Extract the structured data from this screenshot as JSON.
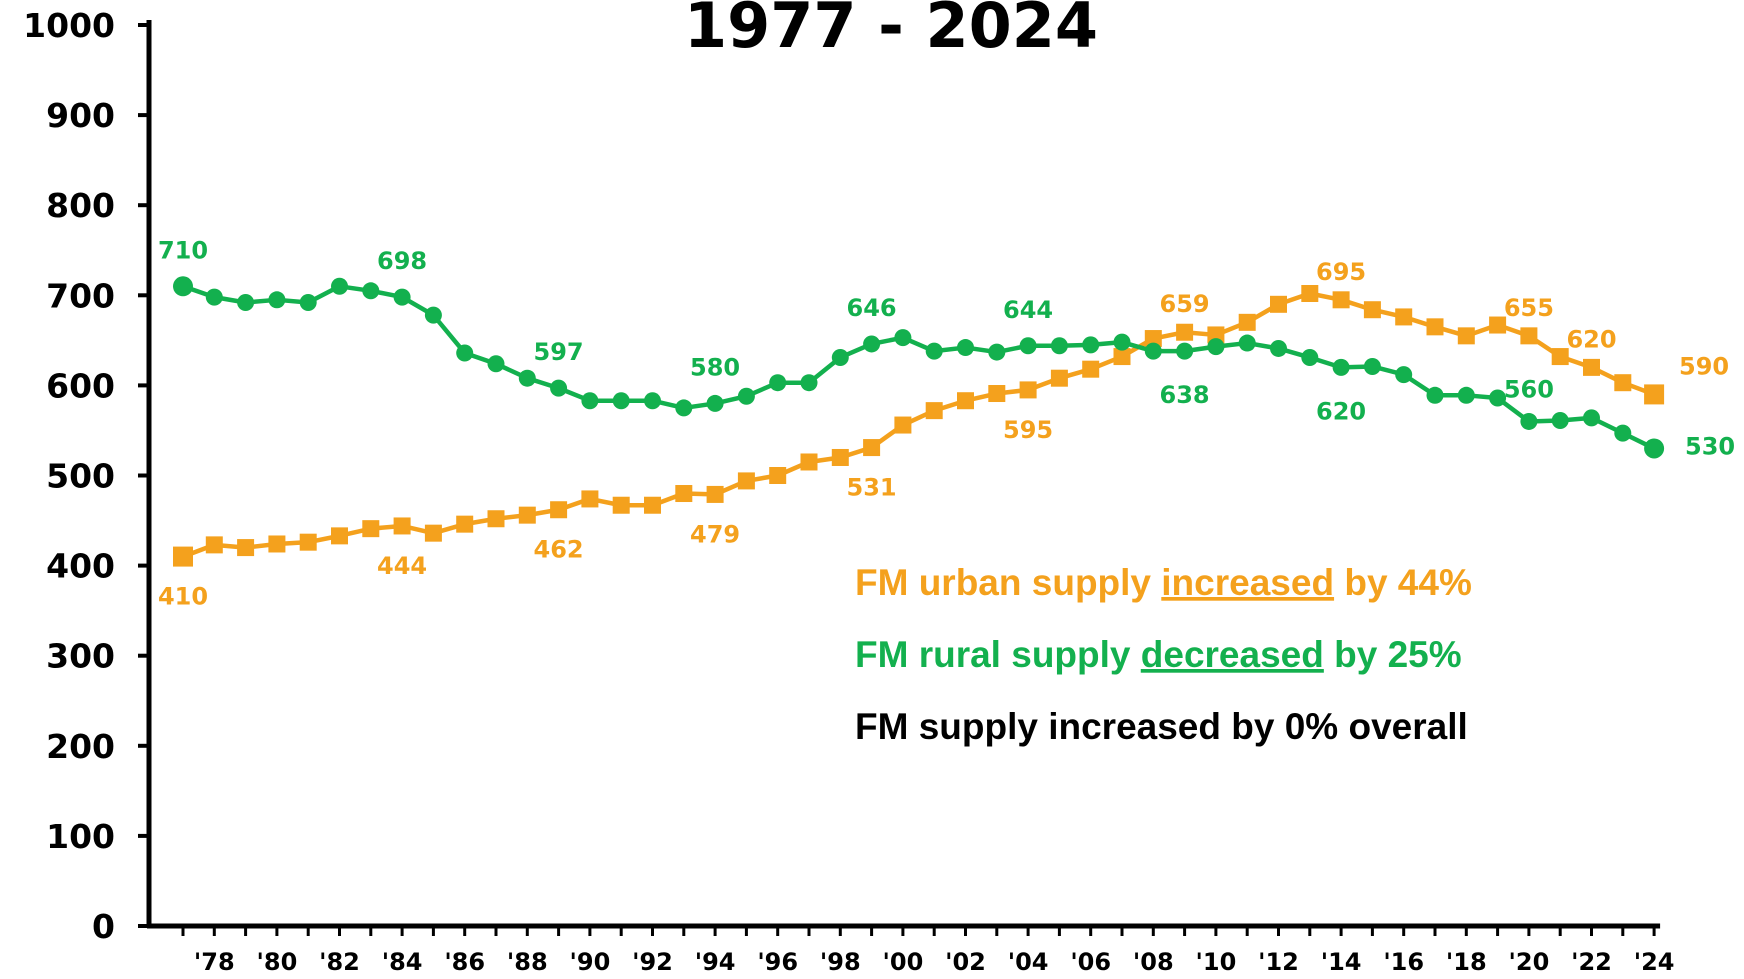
{
  "chart_data": {
    "type": "line",
    "title": "1977 - 2024",
    "categories": [
      null,
      "'78",
      null,
      "'80",
      null,
      "'82",
      null,
      "'84",
      null,
      "'86",
      null,
      "'88",
      null,
      "'90",
      null,
      "'92",
      null,
      "'94",
      null,
      "'96",
      null,
      "'98",
      null,
      "'00",
      null,
      "'02",
      null,
      "'04",
      null,
      "'06",
      null,
      "'08",
      null,
      "'10",
      null,
      "'12",
      null,
      "'14",
      null,
      "'16",
      null,
      "'18",
      null,
      "'20",
      null,
      "'22",
      null,
      "'24"
    ],
    "series": [
      {
        "name": "FM urban supply",
        "color": "#f4a11d",
        "marker": "square",
        "values": [
          410,
          423,
          420,
          424,
          426,
          433,
          441,
          444,
          436,
          446,
          452,
          456,
          462,
          474,
          467,
          467,
          480,
          479,
          494,
          500,
          515,
          520,
          531,
          556,
          572,
          583,
          591,
          595,
          608,
          618,
          632,
          652,
          659,
          656,
          670,
          690,
          702,
          695,
          684,
          676,
          665,
          655,
          667,
          655,
          632,
          620,
          603,
          590
        ]
      },
      {
        "name": "FM rural supply",
        "color": "#13b04e",
        "marker": "circle",
        "values": [
          710,
          698,
          692,
          695,
          692,
          710,
          705,
          698,
          678,
          636,
          624,
          608,
          597,
          583,
          583,
          583,
          575,
          580,
          588,
          603,
          603,
          631,
          646,
          653,
          638,
          642,
          637,
          644,
          644,
          645,
          648,
          638,
          638,
          643,
          647,
          641,
          631,
          620,
          621,
          612,
          589,
          589,
          586,
          560,
          561,
          564,
          547,
          530
        ]
      }
    ],
    "ylim": [
      0,
      1000
    ],
    "yticks": [
      0,
      100,
      200,
      300,
      400,
      500,
      600,
      700,
      800,
      900,
      1000
    ],
    "annotations": [
      [
        "FM urban supply",
        "increased",
        "by 44%"
      ],
      [
        "FM rural supply",
        "decreased",
        "by 25%"
      ],
      [
        "FM supply increased by 0% overall"
      ]
    ]
  }
}
